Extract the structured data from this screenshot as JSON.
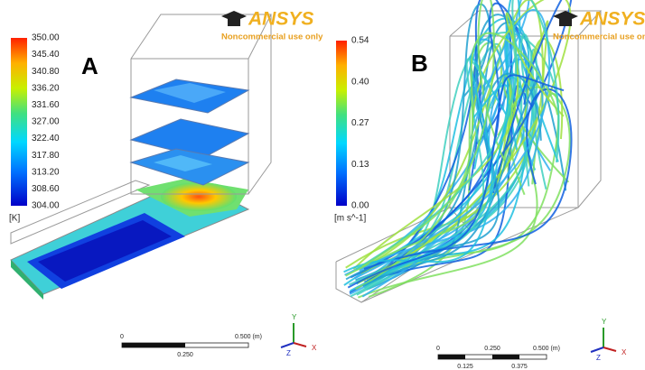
{
  "panels": [
    {
      "label": "A",
      "logo": {
        "brand": "ANSYS",
        "note": "Noncommercial use only"
      },
      "colorbar": {
        "ticks": [
          "350.00",
          "345.40",
          "340.80",
          "336.20",
          "331.60",
          "327.00",
          "322.40",
          "317.80",
          "313.20",
          "308.60",
          "304.00"
        ],
        "unit": "[K]"
      },
      "scale": {
        "top": [
          "0",
          "0.500 (m)"
        ],
        "bottom": [
          "0.250"
        ]
      },
      "axes": [
        "Y",
        "X",
        "Z"
      ]
    },
    {
      "label": "B",
      "logo": {
        "brand": "ANSYS",
        "note": "Noncommercial use only"
      },
      "colorbar": {
        "ticks": [
          "0.54",
          "0.40",
          "0.27",
          "0.13",
          "0.00"
        ],
        "unit": "[m s^-1]"
      },
      "scale": {
        "top": [
          "0",
          "0.250",
          "0.500 (m)"
        ],
        "bottom": [
          "0.125",
          "0.375"
        ]
      },
      "axes": [
        "Y",
        "X",
        "Z"
      ]
    }
  ]
}
